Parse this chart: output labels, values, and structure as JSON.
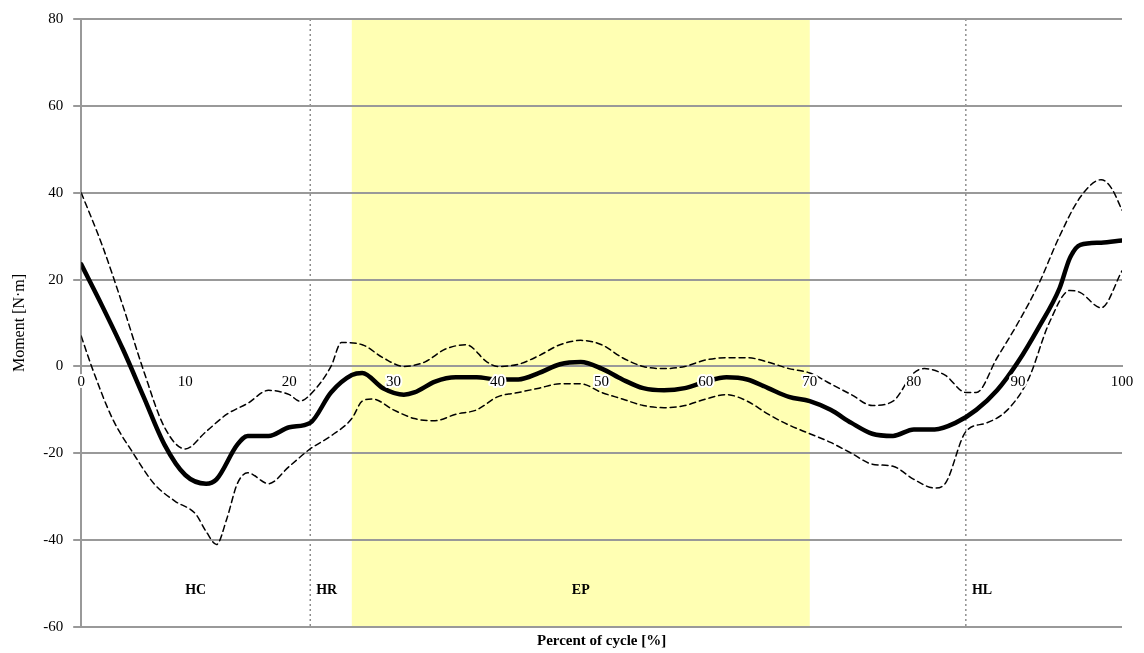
{
  "chart_data": {
    "type": "line",
    "xlabel": "Percent of cycle [%]",
    "ylabel": "Moment [N·m]",
    "xlim": [
      0,
      100
    ],
    "xticks": [
      0,
      10,
      20,
      30,
      40,
      50,
      60,
      70,
      80,
      90,
      100
    ],
    "ylim": [
      -60,
      80
    ],
    "yticks": [
      -60,
      -40,
      -20,
      0,
      20,
      40,
      60,
      80
    ],
    "grid": "y",
    "legend": false,
    "marker": "none",
    "series": [
      {
        "color": "#000000",
        "line_style": "solid",
        "x": [
          0,
          2,
          4,
          6,
          8,
          10,
          12,
          13,
          15,
          16,
          18,
          20,
          22,
          24,
          26,
          27,
          29,
          31,
          32,
          34,
          36,
          38,
          40,
          42,
          44,
          46,
          48,
          50,
          52,
          54,
          56,
          58,
          60,
          62,
          64,
          66,
          68,
          70,
          72,
          74,
          76,
          78,
          80,
          82,
          84,
          86,
          88,
          90,
          92,
          94,
          95,
          96,
          98,
          100
        ],
        "values": [
          23.5,
          14,
          4,
          -7,
          -18,
          -25,
          -27,
          -26,
          -18,
          -16,
          -16,
          -14,
          -13,
          -6,
          -2,
          -1.5,
          -5,
          -6.5,
          -6,
          -3.5,
          -2.5,
          -2.5,
          -3,
          -3,
          -1.5,
          0.5,
          1,
          -0.5,
          -3,
          -5,
          -5.5,
          -5,
          -3.5,
          -2.5,
          -3,
          -5,
          -7,
          -8,
          -10,
          -13,
          -15.5,
          -16,
          -14.5,
          -14.5,
          -13,
          -10,
          -5.5,
          1,
          9,
          18,
          25,
          28,
          28.5,
          29
        ]
      },
      {
        "color": "#000000",
        "line_style": "dashed",
        "x": [
          0,
          2,
          4,
          6,
          8,
          10,
          12,
          14,
          16,
          18,
          20,
          21,
          22,
          24,
          25,
          27,
          29,
          31,
          33,
          35,
          37,
          39,
          40,
          42,
          44,
          46,
          48,
          50,
          52,
          54,
          56,
          58,
          60,
          62,
          64,
          66,
          68,
          70,
          72,
          74,
          76,
          78,
          80,
          81,
          83,
          85,
          86,
          88,
          90,
          92,
          94,
          96,
          98,
          99,
          100
        ],
        "values": [
          40,
          28,
          14,
          -1,
          -14,
          -19,
          -15,
          -11,
          -8.5,
          -5.5,
          -6.5,
          -8,
          -6.5,
          0,
          5.5,
          5,
          2,
          0,
          1,
          4,
          5,
          1,
          0,
          0.5,
          2.5,
          5,
          6,
          5,
          2,
          0,
          -0.5,
          0,
          1.5,
          2,
          2,
          1,
          -0.5,
          -1.5,
          -4,
          -6.5,
          -9,
          -8,
          -1.5,
          -0.5,
          -2,
          -6,
          -6,
          2,
          10,
          19,
          30,
          39,
          43,
          41,
          36
        ]
      },
      {
        "color": "#000000",
        "line_style": "dashed",
        "x": [
          0,
          1,
          3,
          5,
          7,
          9,
          11,
          12,
          13,
          14,
          15,
          16,
          18,
          20,
          22,
          24,
          26,
          27,
          28,
          30,
          32,
          34,
          36,
          38,
          40,
          42,
          44,
          46,
          48,
          50,
          52,
          54,
          56,
          58,
          60,
          62,
          64,
          66,
          68,
          70,
          72,
          74,
          76,
          78,
          80,
          82,
          83,
          85,
          87,
          89,
          91,
          93,
          95,
          96,
          98,
          100
        ],
        "values": [
          7,
          0,
          -12,
          -20,
          -27,
          -31,
          -34,
          -38,
          -41,
          -35,
          -27,
          -24.5,
          -27,
          -23,
          -19,
          -16,
          -12,
          -8,
          -7.5,
          -10,
          -12,
          -12.5,
          -11,
          -10,
          -7,
          -6,
          -5,
          -4,
          -4,
          -6,
          -7.5,
          -9,
          -9.5,
          -9,
          -7.5,
          -6.5,
          -8,
          -11,
          -13.5,
          -15.5,
          -17.5,
          -20,
          -22.5,
          -23,
          -26,
          -28,
          -27,
          -15,
          -13,
          -10,
          -3,
          10,
          17.5,
          17,
          13.5,
          22
        ]
      }
    ],
    "ref_lines": [
      {
        "axis": "x",
        "value": 22,
        "label": "HR",
        "color": "#555555",
        "line_style": "dotted"
      },
      {
        "axis": "x",
        "value": 85,
        "label": "HL",
        "color": "#555555",
        "line_style": "dotted"
      }
    ],
    "bands": [
      {
        "axis": "x",
        "from": 26,
        "to": 70,
        "label": "EP",
        "color": "#ffffb3"
      }
    ],
    "annotations": [
      "HC"
    ]
  }
}
